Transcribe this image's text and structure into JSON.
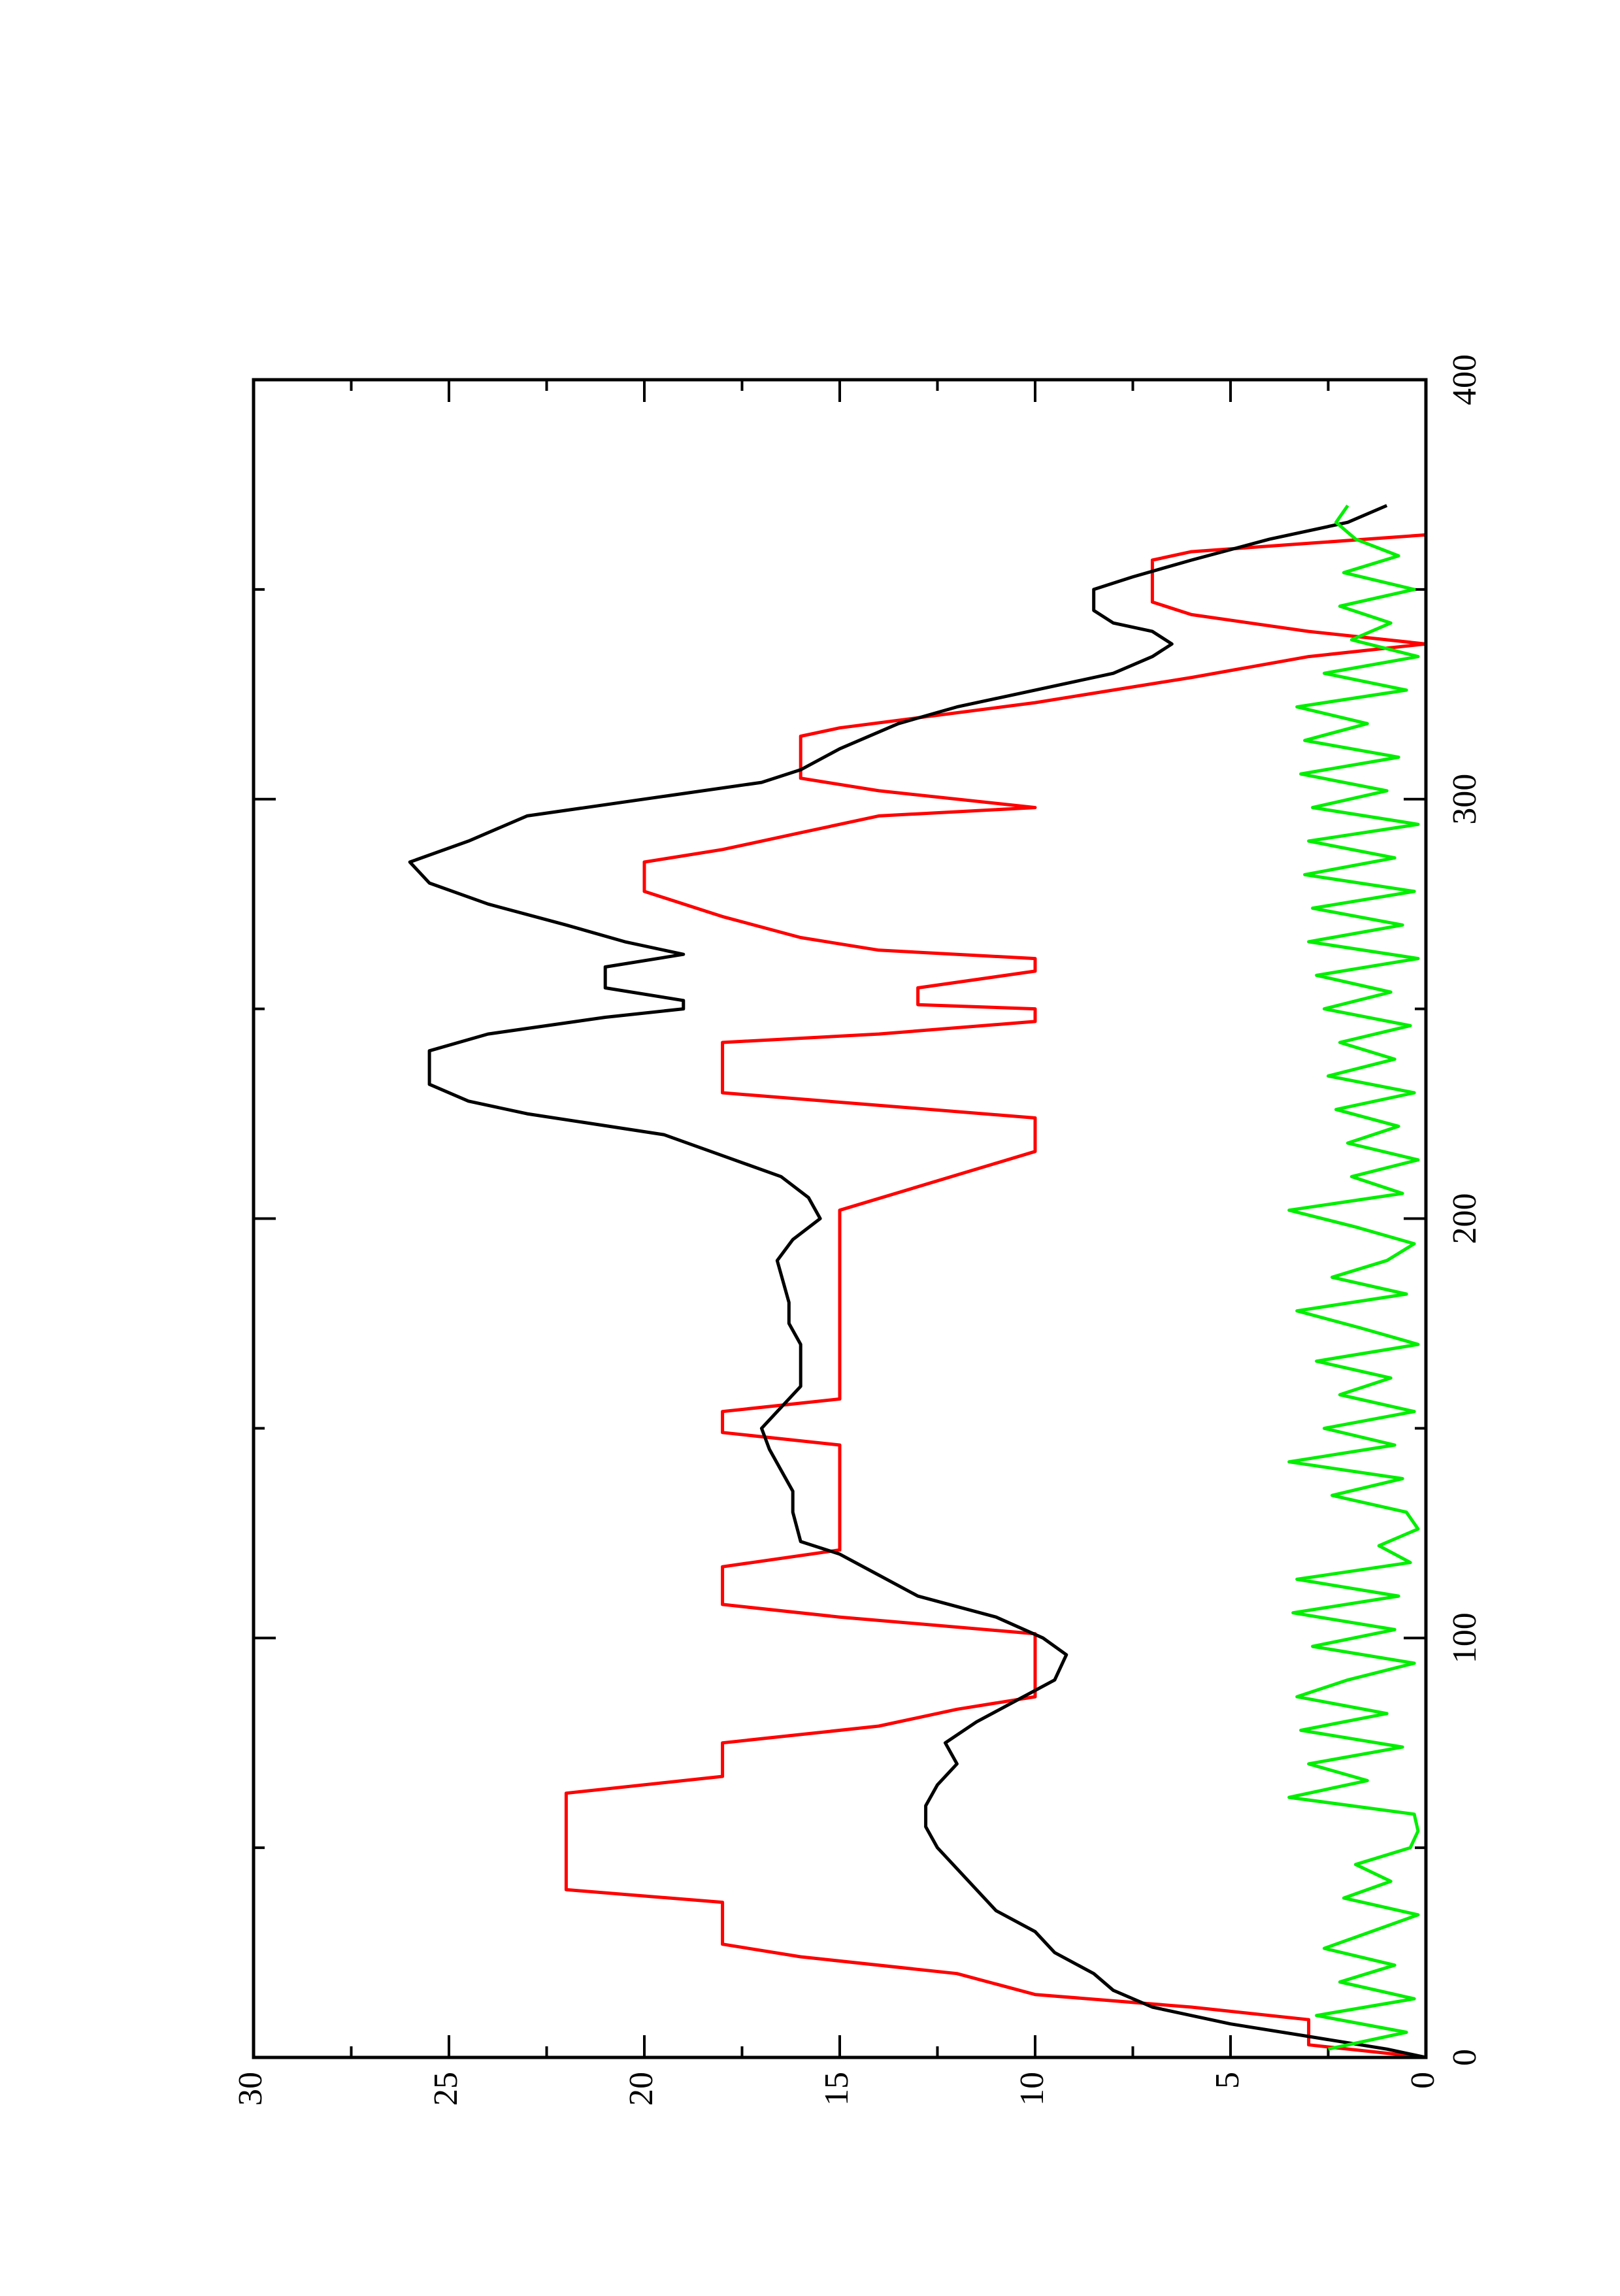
{
  "chart_data": {
    "type": "line",
    "xlim": [
      0,
      400
    ],
    "xticks": [
      0,
      100,
      200,
      300,
      400
    ],
    "xminor": [
      50,
      150,
      250,
      350
    ],
    "ylim": [
      0,
      30
    ],
    "yticks": [
      0,
      5,
      10,
      15,
      20,
      25,
      30
    ],
    "yminor": [
      2.5,
      7.5,
      12.5,
      17.5,
      22.5,
      27.5
    ],
    "rotation": -90,
    "series": [
      {
        "color": "#ff0000",
        "x": [
          0,
          3,
          9,
          12,
          15,
          20,
          24,
          27,
          37,
          40,
          63,
          67,
          75,
          77,
          79,
          83,
          86,
          101,
          105,
          108,
          117,
          121,
          146,
          149,
          154,
          157,
          202,
          216,
          224,
          227,
          230,
          242,
          244,
          247,
          250,
          251,
          255,
          259,
          262,
          264,
          267,
          272,
          278,
          285,
          288,
          292,
          296,
          298,
          302,
          305,
          315,
          317,
          323,
          329,
          334,
          337,
          340,
          344,
          347,
          357,
          359,
          361,
          363
        ],
        "values": [
          0,
          3,
          3,
          6,
          10,
          12,
          16,
          18,
          18,
          22,
          22,
          18,
          18,
          16,
          14,
          12,
          10,
          10,
          15,
          18,
          18,
          15,
          15,
          18,
          18,
          15,
          15,
          10,
          10,
          14,
          18,
          18,
          14,
          10,
          10,
          13,
          13,
          10,
          10,
          14,
          16,
          18,
          20,
          20,
          18,
          16,
          14,
          10,
          14,
          16,
          16,
          15,
          10,
          6,
          3,
          0,
          3,
          6,
          7,
          7,
          6,
          3,
          0
        ]
      },
      {
        "color": "#000000",
        "x": [
          0,
          2,
          5,
          8,
          12,
          16,
          20,
          25,
          30,
          35,
          40,
          45,
          50,
          55,
          60,
          65,
          70,
          75,
          80,
          85,
          90,
          96,
          100,
          105,
          110,
          115,
          120,
          123,
          130,
          135,
          140,
          145,
          150,
          155,
          160,
          170,
          175,
          180,
          190,
          195,
          200,
          205,
          210,
          215,
          220,
          225,
          228,
          232,
          240,
          244,
          248,
          250,
          252,
          255,
          260,
          263,
          266,
          270,
          275,
          280,
          285,
          290,
          296,
          300,
          304,
          307,
          312,
          318,
          322,
          326,
          330,
          334,
          337,
          340,
          342,
          345,
          350,
          353,
          357,
          362,
          366,
          370
        ],
        "values": [
          0,
          1,
          3,
          5,
          7,
          8,
          8.5,
          9.5,
          10,
          11,
          11.5,
          12,
          12.5,
          12.8,
          12.8,
          12.5,
          12,
          12.3,
          11.5,
          10.5,
          9.5,
          9.2,
          9.8,
          11,
          13,
          14,
          15,
          16,
          16.2,
          16.2,
          16.5,
          16.8,
          17,
          16.5,
          16,
          16,
          16.3,
          16.3,
          16.6,
          16.2,
          15.5,
          15.8,
          16.5,
          18,
          19.5,
          23,
          24.5,
          25.5,
          25.5,
          24,
          21,
          19,
          19,
          21,
          21,
          19,
          20.5,
          22,
          24,
          25.5,
          26,
          24.5,
          23,
          20,
          17,
          16,
          15,
          13.5,
          12,
          10,
          8,
          7,
          6.5,
          7,
          8,
          8.5,
          8.5,
          7.5,
          6,
          4,
          2,
          1
        ]
      },
      {
        "color": "#00ee00",
        "x": [
          2,
          6,
          10,
          14,
          18,
          22,
          26,
          30,
          34,
          38,
          42,
          46,
          50,
          54,
          58,
          62,
          66,
          70,
          74,
          78,
          82,
          86,
          90,
          94,
          98,
          102,
          106,
          110,
          114,
          118,
          122,
          126,
          130,
          134,
          138,
          142,
          146,
          150,
          154,
          158,
          162,
          166,
          170,
          174,
          178,
          182,
          186,
          190,
          194,
          198,
          202,
          206,
          210,
          214,
          218,
          222,
          226,
          230,
          234,
          238,
          242,
          246,
          250,
          254,
          258,
          262,
          266,
          270,
          274,
          278,
          282,
          286,
          290,
          294,
          298,
          302,
          306,
          310,
          314,
          318,
          322,
          326,
          330,
          334,
          338,
          342,
          346,
          350,
          354,
          358,
          362,
          366,
          370
        ],
        "values": [
          2.5,
          0.5,
          2.8,
          0.3,
          2.2,
          0.8,
          2.6,
          1.4,
          0.2,
          2.1,
          0.9,
          1.8,
          0.4,
          0.2,
          0.3,
          3.5,
          1.5,
          3.0,
          0.6,
          3.2,
          1.0,
          3.3,
          2.0,
          0.3,
          2.9,
          0.8,
          3.4,
          0.7,
          3.3,
          0.4,
          1.2,
          0.2,
          0.5,
          2.4,
          0.6,
          3.5,
          0.8,
          2.6,
          0.3,
          2.2,
          0.9,
          2.8,
          0.2,
          1.7,
          3.3,
          0.5,
          2.4,
          1.0,
          0.3,
          1.8,
          3.5,
          0.6,
          1.9,
          0.2,
          2.0,
          0.7,
          2.3,
          0.3,
          2.5,
          0.8,
          2.2,
          0.4,
          2.6,
          0.9,
          2.8,
          0.2,
          3.0,
          0.6,
          2.9,
          0.3,
          3.1,
          0.8,
          3.0,
          0.2,
          2.9,
          1.0,
          3.2,
          0.7,
          3.1,
          1.5,
          3.3,
          0.5,
          2.6,
          0.2,
          1.9,
          0.9,
          2.2,
          0.3,
          2.1,
          0.7,
          1.8,
          2.3,
          2.0
        ]
      }
    ]
  }
}
